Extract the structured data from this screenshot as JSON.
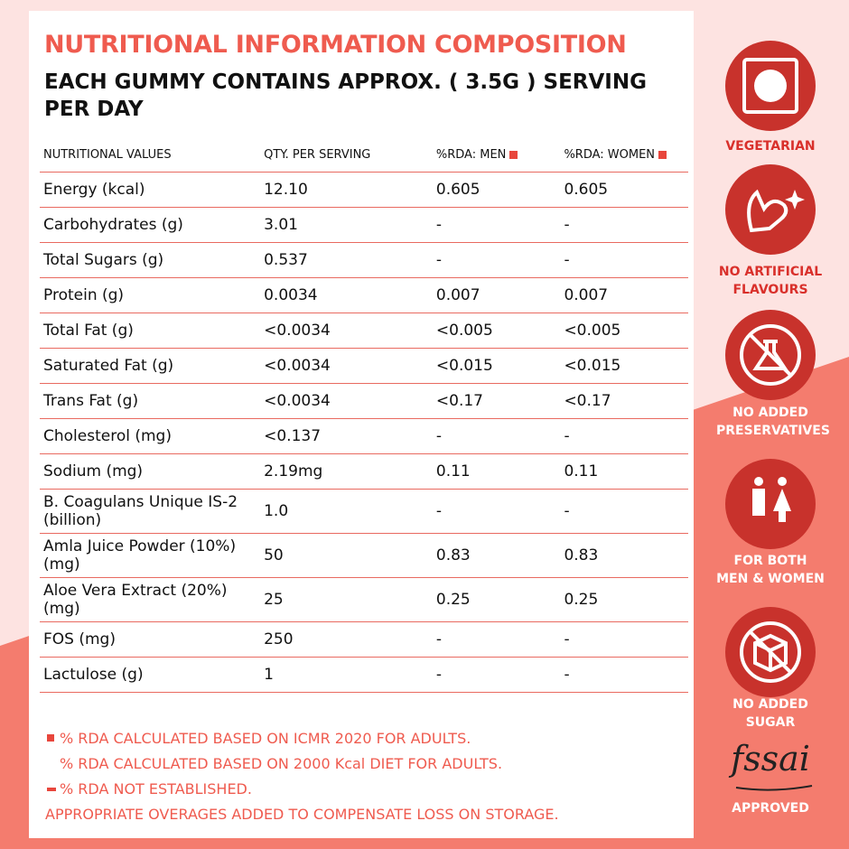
{
  "header": {
    "title": "NUTRITIONAL INFORMATION COMPOSITION",
    "subtitle": "EACH GUMMY CONTAINS APPROX. ( 3.5G ) SERVING PER DAY"
  },
  "table": {
    "columns": [
      "NUTRITIONAL VALUES",
      "QTY. PER SERVING",
      "%RDA: MEN",
      "%RDA: WOMEN"
    ],
    "rows": [
      [
        "Energy (kcal)",
        "12.10",
        "0.605",
        "0.605"
      ],
      [
        "Carbohydrates (g)",
        "3.01",
        "-",
        "-"
      ],
      [
        "Total Sugars (g)",
        "0.537",
        "-",
        "-"
      ],
      [
        "Protein (g)",
        "0.0034",
        "0.007",
        "0.007"
      ],
      [
        "Total Fat (g)",
        "<0.0034",
        "<0.005",
        "<0.005"
      ],
      [
        "Saturated Fat (g)",
        "<0.0034",
        "<0.015",
        "<0.015"
      ],
      [
        "Trans Fat (g)",
        "<0.0034",
        "<0.17",
        "<0.17"
      ],
      [
        "Cholesterol (mg)",
        "<0.137",
        "-",
        "-"
      ],
      [
        "Sodium (mg)",
        "2.19mg",
        "0.11",
        "0.11"
      ],
      [
        "B. Coagulans Unique IS-2 (billion)",
        "1.0",
        "-",
        "-"
      ],
      [
        "Amla Juice Powder (10%) (mg)",
        "50",
        "0.83",
        "0.83"
      ],
      [
        "Aloe Vera Extract (20%) (mg)",
        "25",
        "0.25",
        "0.25"
      ],
      [
        "FOS (mg)",
        "250",
        "-",
        "-"
      ],
      [
        "Lactulose (g)",
        "1",
        "-",
        "-"
      ]
    ]
  },
  "footnotes": [
    "% RDA CALCULATED BASED ON ICMR 2020 FOR ADULTS.",
    "% RDA CALCULATED BASED ON 2000 Kcal DIET FOR ADULTS.",
    "% RDA NOT ESTABLISHED.",
    "APPROPRIATE OVERAGES ADDED TO COMPENSATE LOSS ON STORAGE."
  ],
  "badges": [
    "VEGETARIAN",
    "NO ARTIFICIAL FLAVOURS",
    "NO ADDED PRESERVATIVES",
    "FOR BOTH MEN & WOMEN",
    "NO ADDED SUGAR"
  ],
  "certification": {
    "logo": "fssai",
    "label": "APPROVED"
  }
}
